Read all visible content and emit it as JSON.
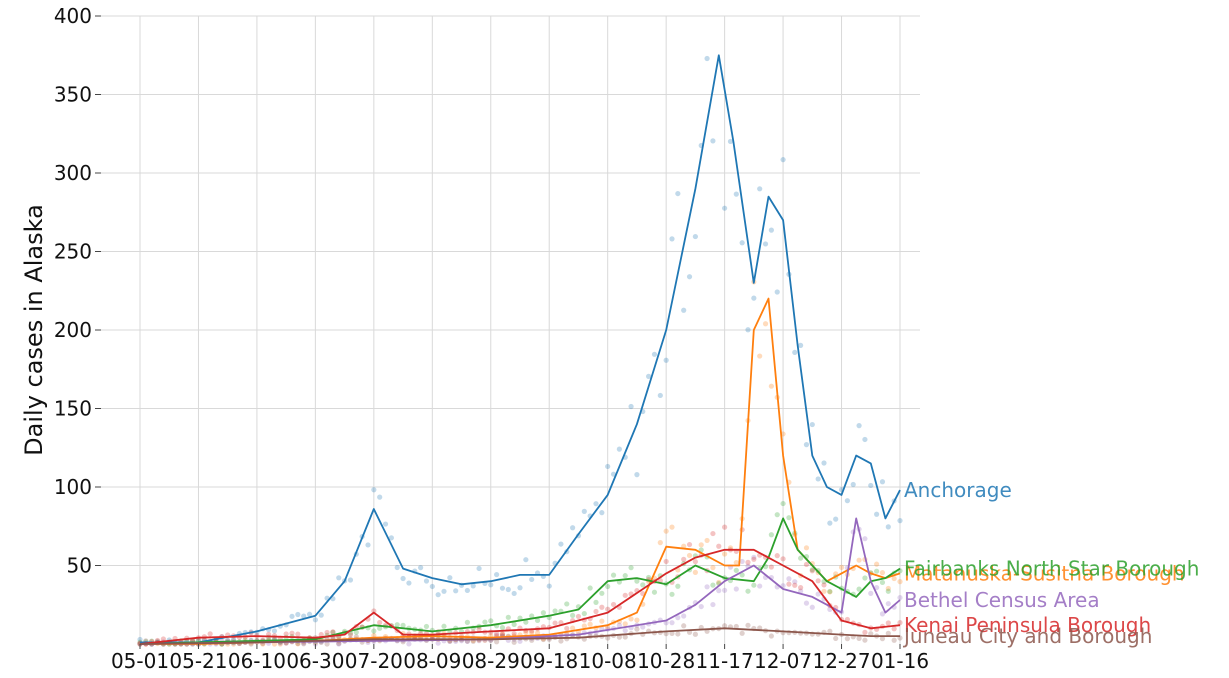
{
  "chart_data": {
    "type": "line",
    "title": "",
    "xlabel": "",
    "ylabel": "Daily cases in Alaska",
    "ylim": [
      0,
      400
    ],
    "yticks": [
      50,
      100,
      150,
      200,
      250,
      300,
      350,
      400
    ],
    "x_tick_labels": [
      "05-01",
      "05-21",
      "06-10",
      "06-30",
      "07-20",
      "08-09",
      "08-29",
      "09-18",
      "10-08",
      "10-28",
      "11-17",
      "12-07",
      "12-27",
      "01-16"
    ],
    "grid": true,
    "legend": "line-end labels",
    "points_shown": "raw daily values shown as faint dots behind smoothed lines",
    "series": [
      {
        "name": "Anchorage",
        "color": "#1f77b4",
        "x": [
          "05-01",
          "05-21",
          "06-10",
          "06-30",
          "07-10",
          "07-20",
          "07-30",
          "08-09",
          "08-19",
          "08-29",
          "09-08",
          "09-18",
          "09-28",
          "10-08",
          "10-18",
          "10-28",
          "11-07",
          "11-15",
          "11-20",
          "11-27",
          "12-02",
          "12-07",
          "12-12",
          "12-17",
          "12-22",
          "12-27",
          "01-01",
          "01-06",
          "01-11",
          "01-16"
        ],
        "values": [
          1,
          1,
          8,
          18,
          40,
          86,
          48,
          42,
          38,
          40,
          44,
          44,
          70,
          95,
          140,
          200,
          290,
          375,
          320,
          230,
          285,
          270,
          190,
          120,
          100,
          95,
          120,
          115,
          80,
          98
        ]
      },
      {
        "name": "Matanuska-Susitna Borough",
        "color": "#ff7f0e",
        "x": [
          "05-01",
          "05-21",
          "06-10",
          "06-30",
          "07-20",
          "08-09",
          "08-29",
          "09-18",
          "10-08",
          "10-18",
          "10-28",
          "11-07",
          "11-17",
          "11-22",
          "11-27",
          "12-02",
          "12-07",
          "12-12",
          "12-17",
          "12-22",
          "12-27",
          "01-01",
          "01-06",
          "01-11",
          "01-16"
        ],
        "values": [
          0,
          0,
          1,
          2,
          4,
          5,
          4,
          6,
          12,
          20,
          62,
          60,
          50,
          50,
          200,
          220,
          120,
          60,
          50,
          40,
          45,
          50,
          45,
          42,
          45
        ]
      },
      {
        "name": "Fairbanks North Star Borough",
        "color": "#2ca02c",
        "x": [
          "05-01",
          "05-21",
          "06-10",
          "06-30",
          "07-20",
          "08-09",
          "08-29",
          "09-18",
          "09-28",
          "10-08",
          "10-18",
          "10-28",
          "11-07",
          "11-17",
          "11-27",
          "12-02",
          "12-07",
          "12-12",
          "12-17",
          "12-22",
          "12-27",
          "01-01",
          "01-06",
          "01-11",
          "01-16"
        ],
        "values": [
          0,
          1,
          2,
          3,
          12,
          8,
          12,
          18,
          22,
          40,
          42,
          38,
          50,
          42,
          40,
          55,
          80,
          60,
          50,
          40,
          35,
          30,
          40,
          42,
          48
        ]
      },
      {
        "name": "Bethel Census Area",
        "color": "#9467bd",
        "x": [
          "05-01",
          "06-10",
          "07-20",
          "08-29",
          "09-28",
          "10-28",
          "11-07",
          "11-17",
          "11-27",
          "12-07",
          "12-17",
          "12-27",
          "01-01",
          "01-06",
          "01-11",
          "01-16"
        ],
        "values": [
          0,
          1,
          2,
          3,
          6,
          15,
          25,
          40,
          50,
          35,
          30,
          20,
          80,
          40,
          20,
          28
        ]
      },
      {
        "name": "Kenai Peninsula Borough",
        "color": "#d62728",
        "x": [
          "05-01",
          "05-21",
          "06-10",
          "06-30",
          "07-10",
          "07-20",
          "07-30",
          "08-09",
          "08-29",
          "09-18",
          "10-08",
          "10-28",
          "11-07",
          "11-17",
          "11-27",
          "12-07",
          "12-17",
          "12-27",
          "01-06",
          "01-16"
        ],
        "values": [
          0,
          4,
          5,
          4,
          6,
          20,
          6,
          6,
          8,
          10,
          20,
          45,
          55,
          60,
          60,
          50,
          40,
          15,
          10,
          12
        ]
      },
      {
        "name": "Juneau City and Borough",
        "color": "#8c564b",
        "x": [
          "05-01",
          "06-10",
          "07-20",
          "08-29",
          "09-28",
          "10-28",
          "11-17",
          "12-07",
          "12-27",
          "01-06",
          "01-16"
        ],
        "values": [
          0,
          1,
          3,
          3,
          4,
          8,
          10,
          8,
          6,
          5,
          5
        ]
      }
    ]
  }
}
